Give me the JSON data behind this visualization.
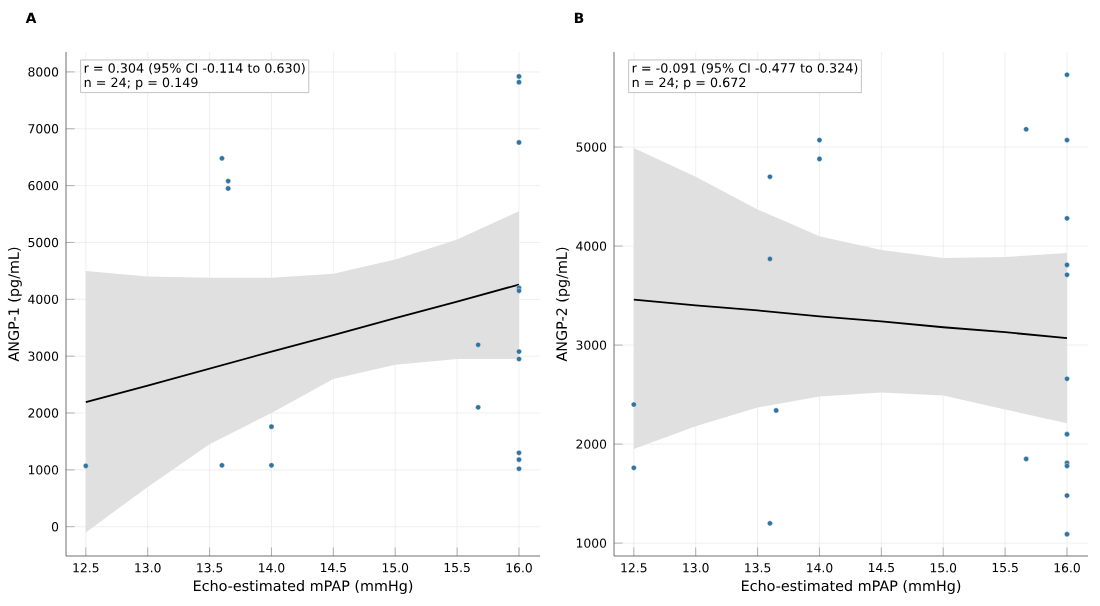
{
  "chart_data": [
    {
      "type": "scatter",
      "title": "A",
      "xlabel": "Echo-estimated mPAP (mmHg)",
      "ylabel": "ANGP-1 (pg/mL)",
      "annotations": [
        "r = 0.304 (95% CI -0.114 to 0.630)",
        "n = 24; p = 0.149"
      ],
      "xlim": [
        12.34,
        16.17
      ],
      "ylim": [
        -515,
        8350
      ],
      "xticks": [
        12.5,
        {
          "value": 13,
          "label": "13.0"
        },
        13.5,
        {
          "value": 14,
          "label": "14.0"
        },
        14.5,
        {
          "value": 15,
          "label": "15.0"
        },
        15.5,
        {
          "value": 16,
          "label": "16.0"
        }
      ],
      "yticks": [
        0,
        1000,
        2000,
        3000,
        4000,
        5000,
        6000,
        7000,
        8000
      ],
      "grid": true,
      "marker": "circle",
      "series": [
        {
          "color": "#3274a1",
          "x": [
            12.5,
            13.6,
            13.6,
            13.65,
            13.65,
            14.0,
            14.0,
            15.67,
            15.67,
            16.0,
            16.0,
            16.0,
            16.0,
            16.0,
            16.0,
            16.0,
            16.0,
            16.0,
            16.0
          ],
          "values": [
            1070,
            6480,
            1080,
            6080,
            5950,
            1760,
            1080,
            3200,
            2100,
            7920,
            7820,
            6760,
            4200,
            4150,
            3080,
            2950,
            1300,
            1180,
            1020
          ]
        },
        {
          "type": "line",
          "color": "#000000",
          "marker": "none",
          "x": [
            12.5,
            13,
            13.5,
            14,
            14.5,
            15,
            15.5,
            16
          ],
          "values": [
            2190,
            2480,
            2780,
            3080,
            3370,
            3670,
            3960,
            4260
          ],
          "lower": [
            -100,
            700,
            1450,
            2000,
            2600,
            2850,
            2950,
            2950
          ],
          "upper": [
            4500,
            4400,
            4380,
            4380,
            4450,
            4700,
            5050,
            5550
          ]
        }
      ]
    },
    {
      "type": "scatter",
      "title": "B",
      "xlabel": "Echo-estimated mPAP (mmHg)",
      "ylabel": "ANGP-2 (pg/mL)",
      "annotations": [
        "r = -0.091 (95% CI -0.477 to 0.324)",
        "n = 24; p = 0.672"
      ],
      "xlim": [
        12.34,
        16.17
      ],
      "ylim": [
        870,
        5960
      ],
      "xticks": [
        12.5,
        {
          "value": 13,
          "label": "13.0"
        },
        13.5,
        {
          "value": 14,
          "label": "14.0"
        },
        14.5,
        {
          "value": 15,
          "label": "15.0"
        },
        15.5,
        {
          "value": 16,
          "label": "16.0"
        }
      ],
      "yticks": [
        1000,
        2000,
        3000,
        4000,
        5000
      ],
      "grid": true,
      "marker": "circle",
      "series": [
        {
          "color": "#3274a1",
          "x": [
            12.5,
            12.5,
            13.6,
            13.6,
            13.6,
            13.65,
            14.0,
            14.0,
            15.67,
            15.67,
            16.0,
            16.0,
            16.0,
            16.0,
            16.0,
            16.0,
            16.0,
            16.0,
            16.0,
            16.0,
            16.0
          ],
          "values": [
            2400,
            1760,
            4700,
            3870,
            1200,
            2340,
            5070,
            4880,
            5180,
            1850,
            5730,
            5070,
            4280,
            3810,
            3710,
            2660,
            2100,
            1810,
            1780,
            1480,
            1090
          ]
        },
        {
          "type": "line",
          "color": "#000000",
          "marker": "none",
          "x": [
            12.5,
            13,
            13.5,
            14,
            14.5,
            15,
            15.5,
            16
          ],
          "values": [
            3460,
            3400,
            3350,
            3290,
            3240,
            3180,
            3130,
            3070
          ],
          "lower": [
            1950,
            2180,
            2370,
            2480,
            2520,
            2490,
            2350,
            2210
          ],
          "upper": [
            4990,
            4700,
            4370,
            4100,
            3960,
            3880,
            3890,
            3930
          ]
        }
      ]
    }
  ]
}
